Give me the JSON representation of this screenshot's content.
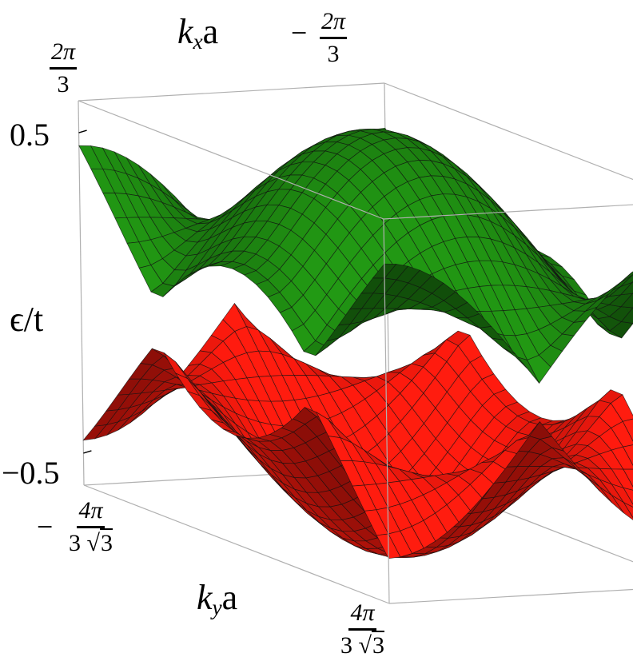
{
  "chart_data": {
    "type": "surface",
    "xlabel": {
      "k": "k",
      "sub": "x",
      "a": "a"
    },
    "ylabel": {
      "k": "k",
      "sub": "y",
      "a": "a"
    },
    "zlabel": "ϵ/t",
    "x_ticks": [
      {
        "sign": "−",
        "num": "2π",
        "den": "3"
      },
      {
        "sign": "",
        "num": "2π",
        "den": "3"
      }
    ],
    "y_ticks": [
      {
        "sign": "−",
        "num": "4π",
        "den_pre": "3",
        "den_root": "3"
      },
      {
        "sign": "",
        "num": "4π",
        "den_pre": "3",
        "den_root": "3"
      }
    ],
    "z_ticks": [
      "0.5",
      "−0.5"
    ],
    "xlim": [
      -2.094,
      2.094
    ],
    "ylim": [
      -2.418,
      2.418
    ],
    "zlim": [
      -0.6,
      0.6
    ],
    "series": [
      {
        "band": "upper",
        "color": "#1f8c12"
      },
      {
        "band": "lower",
        "color": "#ff1a0e"
      }
    ],
    "dirac_points_on_boundary": 6
  }
}
